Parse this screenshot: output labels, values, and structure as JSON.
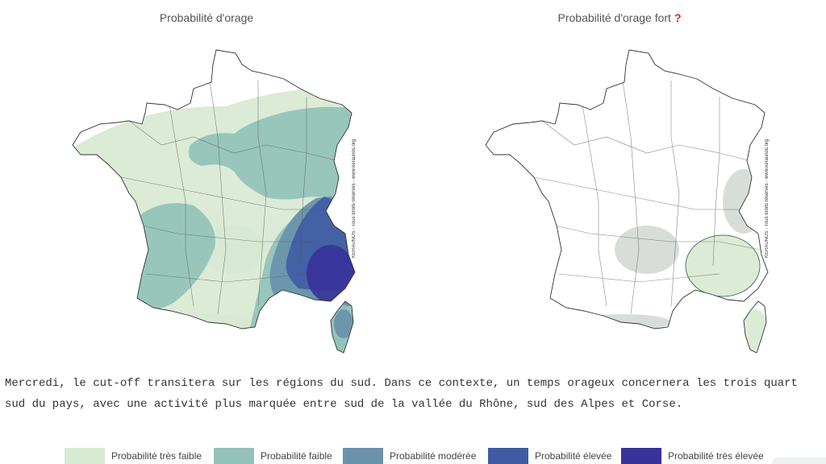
{
  "maps": {
    "left": {
      "title": "Probabilité d'orage",
      "credit": "KERAUNOS - Tous droits réservés - www.keraunos.org"
    },
    "right": {
      "title": "Probabilité d'orage fort",
      "help_mark": "?",
      "credit": "KERAUNOS - Tous droits réservés - www.keraunos.org"
    }
  },
  "description": {
    "line1": "Mercredi, le cut-off transitera sur les régions du sud. Dans ce contexte, un temps orageux concernera les trois quart",
    "line2": "sud du pays, avec une activité plus marquée entre sud de la vallée du Rhône, sud des Alpes et Corse."
  },
  "legend": [
    {
      "label": "Probabilité très faible",
      "color": "#d8e9d2"
    },
    {
      "label": "Probabilité faible",
      "color": "#93c2b8"
    },
    {
      "label": "Probabilité modérée",
      "color": "#6a93ab"
    },
    {
      "label": "Probabilité élevée",
      "color": "#3f5ba4"
    },
    {
      "label": "Probabilité très élevée",
      "color": "#38329a"
    }
  ],
  "colors": {
    "very_low": "#d8e9d2",
    "low": "#93c2b8",
    "moderate": "#6a93ab",
    "high": "#3f5ba4",
    "very_high": "#38329a",
    "help_mark": "#d62828"
  }
}
